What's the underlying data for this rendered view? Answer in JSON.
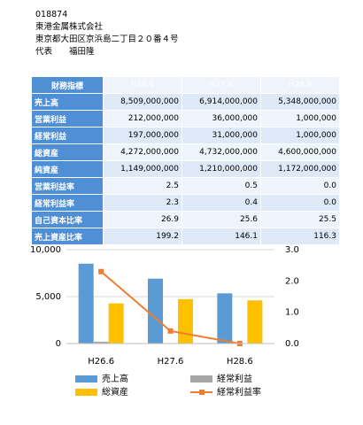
{
  "header": {
    "code": "018874",
    "company": "東港金属株式会社",
    "address": "東京都大田区京浜島二丁目２０番４号",
    "representative": "代表　　福田隆"
  },
  "table": {
    "columns": [
      "財務指標",
      "H26.6",
      "H27.6",
      "H28.6"
    ],
    "rows": [
      [
        "売上高",
        "8,509,000,000",
        "6,914,000,000",
        "5,348,000,000"
      ],
      [
        "営業利益",
        "212,000,000",
        "36,000,000",
        "1,000,000"
      ],
      [
        "経常利益",
        "197,000,000",
        "31,000,000",
        "1,000,000"
      ],
      [
        "総資産",
        "4,272,000,000",
        "4,732,000,000",
        "4,600,000,000"
      ],
      [
        "純資産",
        "1,149,000,000",
        "1,210,000,000",
        "1,172,000,000"
      ],
      [
        "営業利益率",
        "2.5",
        "0.5",
        "0.0"
      ],
      [
        "経常利益率",
        "2.3",
        "0.4",
        "0.0"
      ],
      [
        "自己資本比率",
        "26.9",
        "25.6",
        "25.5"
      ],
      [
        "売上資産比率",
        "199.2",
        "146.1",
        "116.3"
      ]
    ]
  },
  "chart_data": {
    "type": "bar",
    "categories": [
      "H26.6",
      "H27.6",
      "H28.6"
    ],
    "series": [
      {
        "name": "売上高",
        "color": "#5b9bd5",
        "values": [
          8509,
          6914,
          5348
        ]
      },
      {
        "name": "経常利益",
        "color": "#a5a5a5",
        "values": [
          197,
          31,
          1
        ]
      },
      {
        "name": "総資産",
        "color": "#ffc000",
        "values": [
          4272,
          4732,
          4600
        ]
      },
      {
        "name": "経常利益率",
        "color": "#ed7d31",
        "type": "line",
        "axis": "y2",
        "values": [
          2.3,
          0.4,
          0.0
        ]
      }
    ],
    "ylim": [
      0,
      10000
    ],
    "yticks": [
      0,
      {
        "value": 5000,
        "label": "5,000"
      },
      {
        "value": 10000,
        "label": "10,000"
      }
    ],
    "y2lim": [
      0,
      3
    ],
    "y2ticks": [
      {
        "value": 0,
        "label": "0.0"
      },
      {
        "value": 1,
        "label": "1.0"
      },
      {
        "value": 2,
        "label": "2.0"
      },
      {
        "value": 3,
        "label": "3.0"
      }
    ],
    "grid": true
  }
}
